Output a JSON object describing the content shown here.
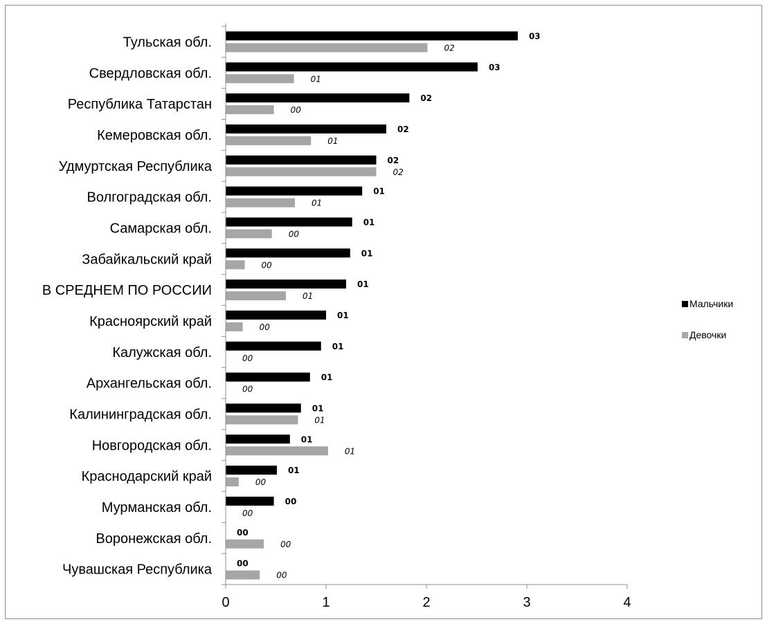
{
  "chart_data": {
    "type": "bar",
    "orientation": "horizontal",
    "categories": [
      "Тульская обл.",
      "Свердловская обл.",
      "Республика Татарстан",
      "Кемеровская обл.",
      "Удмуртская Республика",
      "Волгоградская обл.",
      "Самарская обл.",
      "Забайкальский край",
      "В СРЕДНЕМ ПО РОССИИ",
      "Красноярский край",
      "Калужская обл.",
      "Архангельская обл.",
      "Калининградская обл.",
      "Новгородская обл.",
      "Краснодарский край",
      "Мурманская обл.",
      "Воронежская обл.",
      "Чувашская Республика"
    ],
    "series": [
      {
        "name": "Мальчики",
        "color": "#000000",
        "values": [
          2.91,
          2.51,
          1.83,
          1.6,
          1.5,
          1.36,
          1.26,
          1.24,
          1.2,
          1.0,
          0.95,
          0.84,
          0.75,
          0.64,
          0.51,
          0.48,
          0.0,
          0.0
        ],
        "labels": [
          "03",
          "03",
          "02",
          "02",
          "02",
          "01",
          "01",
          "01",
          "01",
          "01",
          "01",
          "01",
          "01",
          "01",
          "01",
          "00",
          "00",
          "00"
        ]
      },
      {
        "name": "Девочки",
        "color": "#a6a6a6",
        "values": [
          2.01,
          0.68,
          0.48,
          0.85,
          1.5,
          0.69,
          0.46,
          0.19,
          0.6,
          0.17,
          0.0,
          0.0,
          0.72,
          1.02,
          0.13,
          0.0,
          0.38,
          0.34
        ],
        "labels": [
          "02",
          "01",
          "00",
          "01",
          "02",
          "01",
          "00",
          "00",
          "01",
          "00",
          "00",
          "00",
          "01",
          "01",
          "00",
          "00",
          "00",
          "00"
        ]
      }
    ],
    "xlim": [
      0,
      4
    ],
    "xticks": [
      "0",
      "1",
      "2",
      "3",
      "4"
    ],
    "legend_position": "right",
    "grid": false
  }
}
